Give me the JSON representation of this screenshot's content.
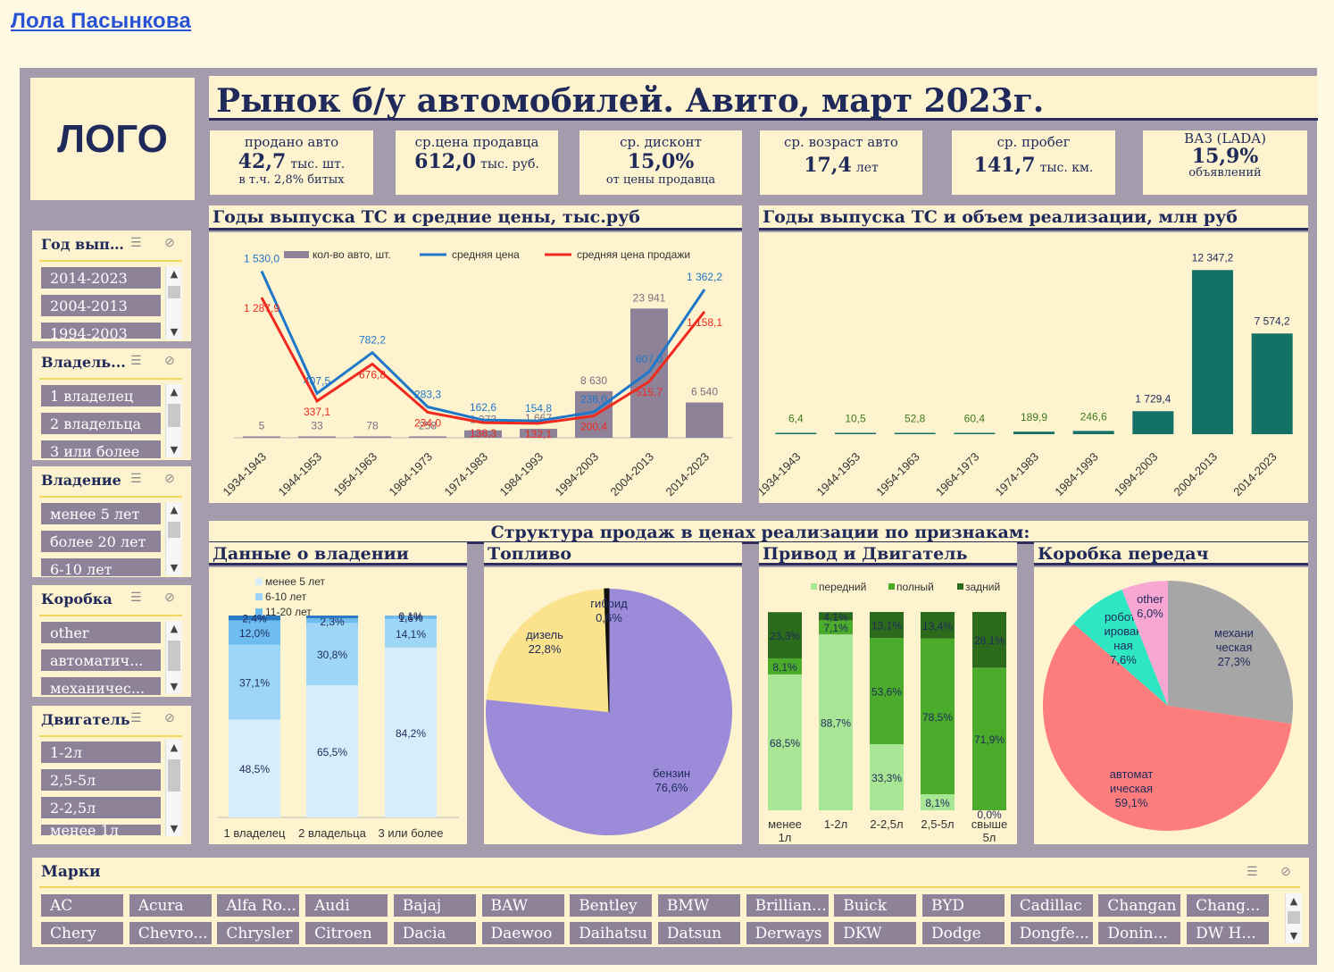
{
  "author": "Лола Пасынкова",
  "logo": "ЛОГО",
  "main_title": "Рынок б/у автомобилей. Авито, март 2023г.",
  "kpis": [
    {
      "l1": "продано авто",
      "big": "42,7",
      "unit": "тыс. шт.",
      "l3": "в т.ч. 2,8% битых"
    },
    {
      "l1": "ср.цена продавца",
      "big": "612,0",
      "unit": "тыс. руб.",
      "l3": ""
    },
    {
      "l1": "ср. дисконт",
      "big": "15,0%",
      "unit": "",
      "l3": "от цены продавца"
    },
    {
      "l1": "ср. возраст авто",
      "big": "17,4",
      "unit": "лет",
      "l3": ""
    },
    {
      "l1": "ср. пробег",
      "big": "141,7",
      "unit": "тыс. км.",
      "l3": ""
    },
    {
      "l1": "ВАЗ (LADA)",
      "big": "15,9%",
      "unit": "",
      "l3": "объявлений"
    }
  ],
  "slicers": [
    {
      "title": "Год выпу...",
      "items": [
        "2014-2023",
        "2004-2013",
        "1994-2003"
      ]
    },
    {
      "title": "Владель...",
      "items": [
        "1 владелец",
        "2 владельца",
        "3 или более"
      ]
    },
    {
      "title": "Владение",
      "items": [
        "менее 5 лет",
        "более 20 лет",
        "6-10 лет"
      ]
    },
    {
      "title": "Коробка",
      "items": [
        "other",
        "автоматич...",
        "механичес..."
      ]
    },
    {
      "title": "Двигатель",
      "items": [
        "1-2л",
        "2,5-5л",
        "2-2,5л",
        "менее 1л"
      ]
    }
  ],
  "brands_title": "Марки",
  "brands": [
    "AC",
    "Acura",
    "Alfa Ro...",
    "Audi",
    "Bajaj",
    "BAW",
    "Bentley",
    "BMW",
    "Brilliance",
    "Buick",
    "BYD",
    "Cadillac",
    "Changan",
    "Chang...",
    "Chery",
    "Chevro...",
    "Chrysler",
    "Citroen",
    "Dacia",
    "Daewoo",
    "Daihatsu",
    "Datsun",
    "Derways",
    "DKW",
    "Dodge",
    "Dongfe...",
    "Donin...",
    "DW H..."
  ],
  "section_titles": {
    "years_price": "Годы выпуска ТС и средние цены, тыс.руб",
    "years_volume": "Годы выпуска ТС и объем реализации, млн руб",
    "structure": "Структура продаж в ценах реализации по признакам:",
    "ownership": "Данные о владении",
    "fuel": "Топливо",
    "drive": "Привод и Двигатель",
    "gearbox": "Коробка передач"
  },
  "chart_data": [
    {
      "type": "bar+line",
      "title": "Годы выпуска ТС и средние цены, тыс.руб",
      "categories": [
        "1934-1943",
        "1944-1953",
        "1954-1963",
        "1964-1973",
        "1974-1983",
        "1984-1993",
        "1994-2003",
        "2004-2013",
        "2014-2023"
      ],
      "series": [
        {
          "name": "кол-во авто, шт.",
          "type": "bar",
          "color": "#8e8299",
          "values": [
            5,
            33,
            78,
            258,
            1373,
            1667,
            8630,
            23941,
            6540
          ],
          "labels": [
            "5",
            "33",
            "78",
            "258",
            "1 373",
            "1 667",
            "8 630",
            "23 941",
            "6 540"
          ]
        },
        {
          "name": "средняя цена",
          "type": "line",
          "color": "#1f77c9",
          "values": [
            1530.0,
            407.5,
            782.2,
            283.3,
            162.6,
            154.8,
            236.0,
            607.0,
            1362.2
          ],
          "labels": [
            "1 530,0",
            "407,5",
            "782,2",
            "283,3",
            "162,6",
            "154,8",
            "236,0",
            "607,0",
            "1 362,2"
          ]
        },
        {
          "name": "средняя цена продажи",
          "type": "line",
          "color": "#f02a1e",
          "values": [
            1287.9,
            337.1,
            676.8,
            234.0,
            138.3,
            132.1,
            200.4,
            515.7,
            1158.1
          ],
          "labels": [
            "1 287,9",
            "337,1",
            "676,8",
            "234,0",
            "138,3",
            "132,1",
            "200,4",
            "515,7",
            "1 158,1"
          ]
        }
      ],
      "legend": "top"
    },
    {
      "type": "bar",
      "title": "Годы выпуска ТС и объем реализации, млн руб",
      "categories": [
        "1934-1943",
        "1944-1953",
        "1954-1963",
        "1964-1973",
        "1974-1983",
        "1984-1993",
        "1994-2003",
        "2004-2013",
        "2014-2023"
      ],
      "values": [
        6.4,
        10.5,
        52.8,
        60.4,
        189.9,
        246.6,
        1729.4,
        12347.2,
        7574.2
      ],
      "labels": [
        "6,4",
        "10,5",
        "52,8",
        "60,4",
        "189,9",
        "246,6",
        "1 729,4",
        "12 347,2",
        "7 574,2"
      ],
      "color": "#137265"
    },
    {
      "type": "bar",
      "stacked": true,
      "title": "Данные о владении",
      "categories": [
        "1 владелец",
        "2 владельца",
        "3 или более"
      ],
      "series": [
        {
          "name": "менее 5 лет",
          "color": "#d6eefc",
          "values": [
            48.5,
            65.5,
            84.2
          ],
          "labels": [
            "48,5%",
            "65,5%",
            "84,2%"
          ]
        },
        {
          "name": "6-10 лет",
          "color": "#9dd6f7",
          "values": [
            37.1,
            30.8,
            14.1
          ],
          "labels": [
            "37,1%",
            "30,8%",
            "14,1%"
          ]
        },
        {
          "name": "11-20 лет",
          "color": "#6fbdf0",
          "values": [
            12.0,
            2.3,
            1.6
          ],
          "labels": [
            "12,0%",
            "2,3%",
            "1,6%"
          ]
        },
        {
          "name": "",
          "color": "#2b7bc4",
          "values": [
            2.4,
            1.4,
            0.1
          ],
          "labels": [
            "2,4%",
            "",
            "0,1%"
          ]
        }
      ]
    },
    {
      "type": "pie",
      "title": "Топливо",
      "slices": [
        {
          "name": "бензин",
          "value": 76.6,
          "label": "76,6%",
          "color": "#9b8bd8"
        },
        {
          "name": "дизель",
          "value": 22.8,
          "label": "22,8%",
          "color": "#fbe38e"
        },
        {
          "name": "гибрид",
          "value": 0.6,
          "label": "0,6%",
          "color": "#111111"
        }
      ]
    },
    {
      "type": "bar",
      "stacked": true,
      "title": "Привод и Двигатель",
      "categories": [
        "менее 1л",
        "1-2л",
        "2-2,5л",
        "2,5-5л",
        "свыше 5л"
      ],
      "series": [
        {
          "name": "передний",
          "color": "#a8e595",
          "values": [
            68.5,
            88.7,
            33.3,
            8.1,
            0.0
          ],
          "labels": [
            "68,5%",
            "88,7%",
            "33,3%",
            "8,1%",
            "0,0%"
          ]
        },
        {
          "name": "полный",
          "color": "#4aac2a",
          "values": [
            8.1,
            7.1,
            53.6,
            78.5,
            71.9
          ],
          "labels": [
            "8,1%",
            "7,1%",
            "53,6%",
            "78,5%",
            "71,9%"
          ]
        },
        {
          "name": "задний",
          "color": "#2c6b1c",
          "values": [
            23.3,
            4.1,
            13.1,
            13.4,
            28.1
          ],
          "labels": [
            "23,3%",
            "4,1%",
            "13,1%",
            "13,4%",
            "28,1%"
          ]
        }
      ]
    },
    {
      "type": "pie",
      "title": "Коробка передач",
      "slices": [
        {
          "name": "механическая",
          "value": 27.3,
          "label": "механи\nческая\n27,3%",
          "color": "#a6a6a6"
        },
        {
          "name": "автоматическая",
          "value": 59.1,
          "label": "автомат\nическая\n59,1%",
          "color": "#fd7d7d"
        },
        {
          "name": "роботизированная",
          "value": 7.6,
          "label": "роботи\nирован\nная\n7,6%",
          "color": "#2ee6c2"
        },
        {
          "name": "other",
          "value": 6.0,
          "label": "other\n6,0%",
          "color": "#f8a6d2"
        }
      ]
    }
  ]
}
